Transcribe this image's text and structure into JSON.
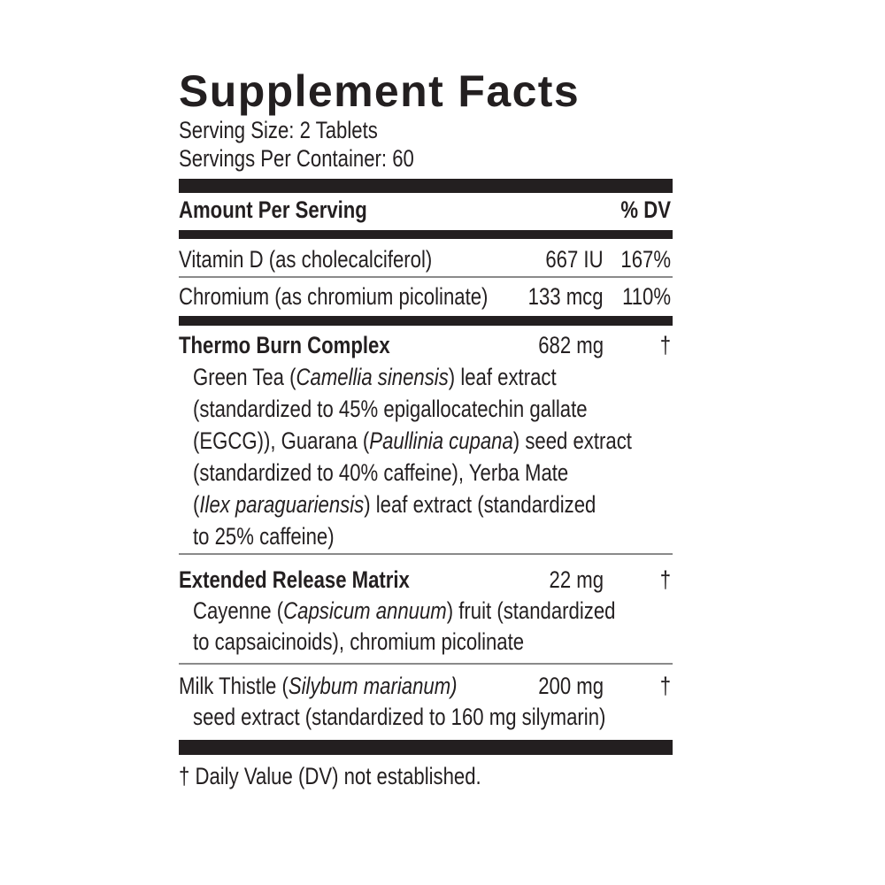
{
  "header": {
    "title": "Supplement Facts",
    "serving_size": "Serving Size: 2 Tablets",
    "servings_per_container": "Servings Per Container: 60"
  },
  "table": {
    "amount_header": "Amount Per Serving",
    "dv_header": "% DV"
  },
  "nutrients": [
    {
      "name": "Vitamin D (as cholecalciferol)",
      "amount": "667 IU",
      "dv": "167%"
    },
    {
      "name": "Chromium (as chromium picolinate)",
      "amount": "133 mcg",
      "dv": "110%"
    }
  ],
  "blends": [
    {
      "name": [
        {
          "t": "Thermo Burn Complex",
          "i": false
        }
      ],
      "amount": "682 mg",
      "dv": "†",
      "bold": true,
      "lines": [
        [
          {
            "t": "Green Tea (",
            "i": false
          },
          {
            "t": "Camellia sinensis",
            "i": true
          },
          {
            "t": ") leaf extract",
            "i": false
          }
        ],
        [
          {
            "t": "(standardized to 45% epigallocatechin gallate",
            "i": false
          }
        ],
        [
          {
            "t": "(EGCG)), Guarana (",
            "i": false
          },
          {
            "t": "Paullinia cupana",
            "i": true
          },
          {
            "t": ") seed extract",
            "i": false
          }
        ],
        [
          {
            "t": "(standardized to 40% caffeine), Yerba Mate",
            "i": false
          }
        ],
        [
          {
            "t": "(",
            "i": false
          },
          {
            "t": "Ilex paraguariensis",
            "i": true
          },
          {
            "t": ") leaf extract (standardized",
            "i": false
          }
        ],
        [
          {
            "t": "to 25% caffeine)",
            "i": false
          }
        ]
      ]
    },
    {
      "name": [
        {
          "t": "Extended Release Matrix",
          "i": false
        }
      ],
      "amount": "22 mg",
      "dv": "†",
      "bold": true,
      "lines": [
        [
          {
            "t": "Cayenne (",
            "i": false
          },
          {
            "t": "Capsicum annuum",
            "i": true
          },
          {
            "t": ") fruit (standardized",
            "i": false
          }
        ],
        [
          {
            "t": "to capsaicinoids), chromium picolinate",
            "i": false
          }
        ]
      ]
    },
    {
      "name": [
        {
          "t": "Milk Thistle (",
          "i": false
        },
        {
          "t": "Silybum marianum)",
          "i": true
        }
      ],
      "amount": "200 mg",
      "dv": "†",
      "bold": false,
      "lines": [
        [
          {
            "t": "seed extract (standardized to 160 mg silymarin)",
            "i": false
          }
        ]
      ]
    }
  ],
  "footnote": "† Daily Value (DV) not established."
}
